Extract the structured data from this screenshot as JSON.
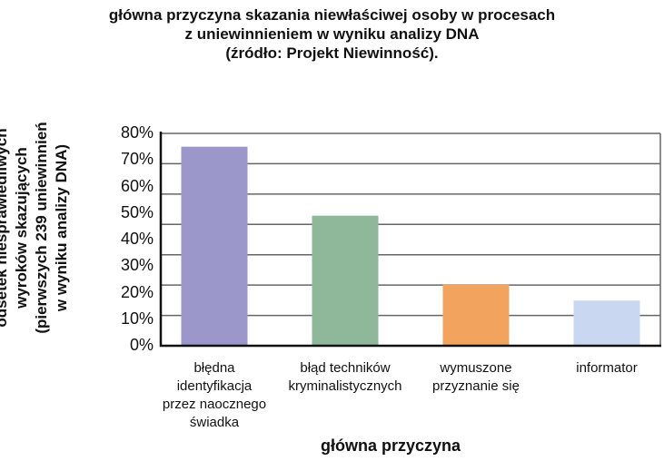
{
  "chart_data": {
    "type": "bar",
    "title": [
      "główna przyczyna skazania niewłaściwej osoby w procesach",
      "z uniewinnieniem w wyniku analizy DNA",
      "(źródło: Projekt Niewinność)."
    ],
    "xlabel": "główna przyczyna",
    "ylabel": [
      "odsetek niesprawiedliwych",
      "wyroków skazujących",
      "(pierwszych 239 uniewinnień",
      "w wyniku analizy DNA)"
    ],
    "categories": [
      [
        "błędna",
        "identyfikacja",
        "przez naocznego",
        "świadka"
      ],
      [
        "błąd techników",
        "kryminalistycznych"
      ],
      [
        "wymuszone",
        "przyznanie się"
      ],
      [
        "informator"
      ]
    ],
    "values": [
      75,
      49,
      23,
      17
    ],
    "colors": [
      "#9b97cb",
      "#8fb79a",
      "#f2a35e",
      "#c9d8f0"
    ],
    "ylim": [
      0,
      80
    ],
    "yticks": [
      "0%",
      "10%",
      "20%",
      "30%",
      "40%",
      "50%",
      "60%",
      "70%",
      "80%"
    ],
    "grid": true,
    "legend": "none"
  }
}
